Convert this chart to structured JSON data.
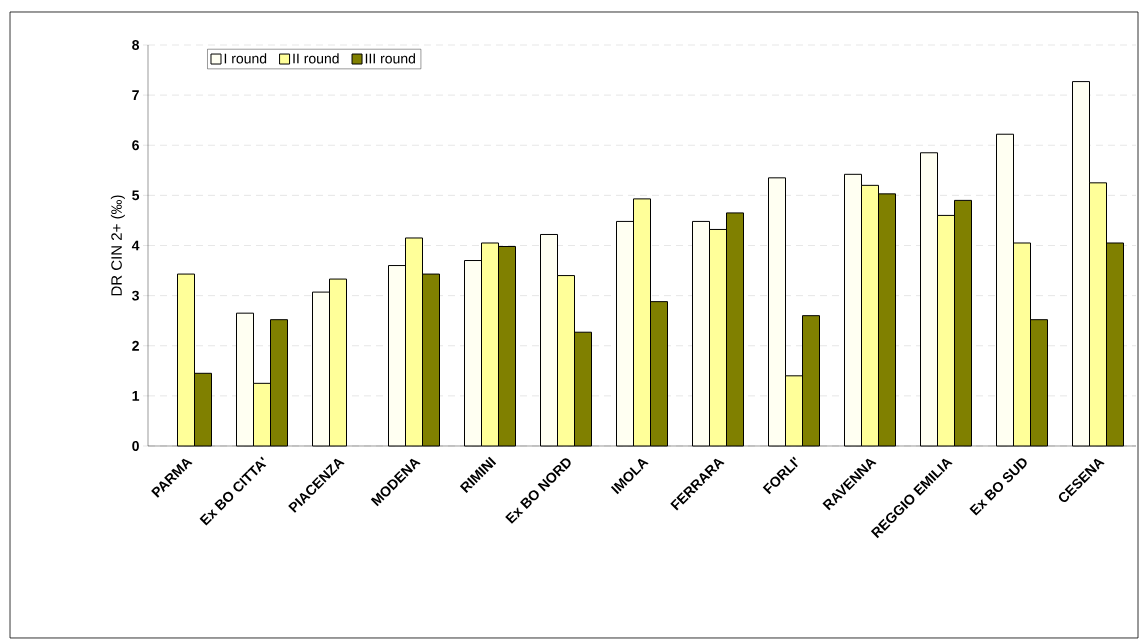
{
  "chart_data": {
    "type": "bar",
    "ylabel": "DR CIN 2+ (‰)",
    "categories": [
      "PARMA",
      "Ex BO CITTA'",
      "PIACENZA",
      "MODENA",
      "RIMINI",
      "Ex BO NORD",
      "IMOLA",
      "FERRARA",
      "FORLI'",
      "RAVENNA",
      "REGGIO EMILIA",
      "Ex BO SUD",
      "CESENA"
    ],
    "series": [
      {
        "name": "I round",
        "color": "#fffff2",
        "values": [
          null,
          2.65,
          3.07,
          3.6,
          3.7,
          4.22,
          4.48,
          4.48,
          5.35,
          5.42,
          5.85,
          6.22,
          7.27
        ]
      },
      {
        "name": "II round",
        "color": "#ffff99",
        "values": [
          3.43,
          1.25,
          3.33,
          4.15,
          4.05,
          3.4,
          4.93,
          4.32,
          1.4,
          5.2,
          4.6,
          4.05,
          5.25
        ]
      },
      {
        "name": "III round",
        "color": "#808000",
        "values": [
          1.45,
          2.52,
          null,
          3.43,
          3.98,
          2.27,
          2.88,
          4.65,
          2.6,
          5.03,
          4.9,
          2.52,
          4.05
        ]
      }
    ],
    "ylim": [
      0,
      8
    ],
    "yticks": [
      0,
      1,
      2,
      3,
      4,
      5,
      6,
      7,
      8
    ],
    "grid": "y",
    "legend": "top left"
  }
}
